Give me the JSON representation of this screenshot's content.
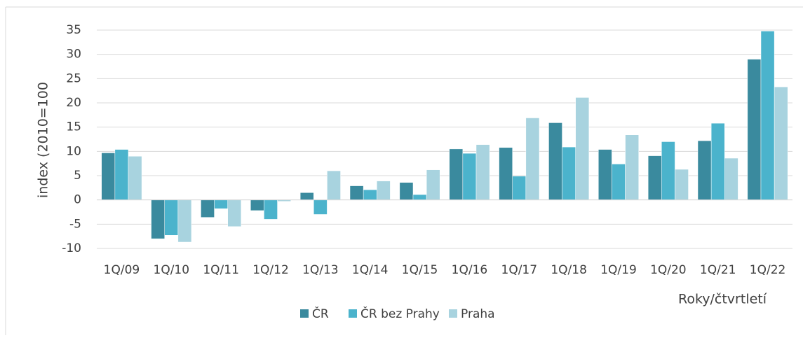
{
  "chart_data": {
    "type": "bar",
    "categories": [
      "1Q/09",
      "1Q/10",
      "1Q/11",
      "1Q/12",
      "1Q/13",
      "1Q/14",
      "1Q/15",
      "1Q/16",
      "1Q/17",
      "1Q/18",
      "1Q/19",
      "1Q/20",
      "1Q/21",
      "1Q/22"
    ],
    "series": [
      {
        "name": "ČR",
        "color": "#3a8a9e",
        "values": [
          9.7,
          -8.0,
          -3.6,
          -2.2,
          1.5,
          2.9,
          3.6,
          10.5,
          10.8,
          15.9,
          10.4,
          9.1,
          12.2,
          29.0
        ]
      },
      {
        "name": "ČR bez Prahy",
        "color": "#4bb3cc",
        "values": [
          10.4,
          -7.3,
          -1.8,
          -4.0,
          -3.0,
          2.1,
          1.1,
          9.6,
          4.9,
          10.9,
          7.4,
          12.0,
          15.8,
          34.8
        ]
      },
      {
        "name": "Praha",
        "color": "#a8d3df",
        "values": [
          9.0,
          -8.7,
          -5.5,
          -0.3,
          6.0,
          3.9,
          6.2,
          11.4,
          16.9,
          21.1,
          13.4,
          6.3,
          8.6,
          23.3
        ]
      }
    ],
    "y_label": "index (2010=100",
    "x_label": "Roky/čtvrtletí",
    "ylim": [
      -10,
      35
    ],
    "yticks": [
      -10,
      -5,
      0,
      5,
      10,
      15,
      20,
      25,
      30,
      35
    ],
    "grid": true,
    "legend": "bottom"
  }
}
